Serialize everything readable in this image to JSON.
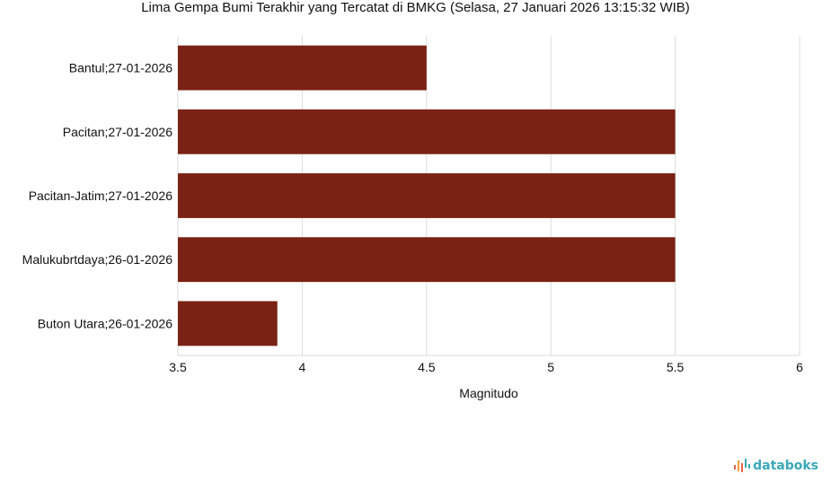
{
  "chart_data": {
    "type": "bar",
    "orientation": "horizontal",
    "title": "Lima Gempa Bumi Terakhir yang Tercatat di BMKG (Selasa, 27 Januari 2026 13:15:32 WIB)",
    "xlabel": "Magnitudo",
    "ylabel": "",
    "categories": [
      "Bantul;27-01-2026",
      "Pacitan;27-01-2026",
      "Pacitan-Jatim;27-01-2026",
      "Malukubrtdaya;26-01-2026",
      "Buton Utara;26-01-2026"
    ],
    "values": [
      4.5,
      5.5,
      5.5,
      5.5,
      3.9
    ],
    "xlim": [
      3.5,
      6
    ],
    "xticks": [
      "3.5",
      "4",
      "4.5",
      "5",
      "5.5",
      "6"
    ],
    "grid": true,
    "bar_color": "#7a2214"
  },
  "brand": {
    "name": "databoks",
    "icon": "databoks-logo-icon"
  }
}
